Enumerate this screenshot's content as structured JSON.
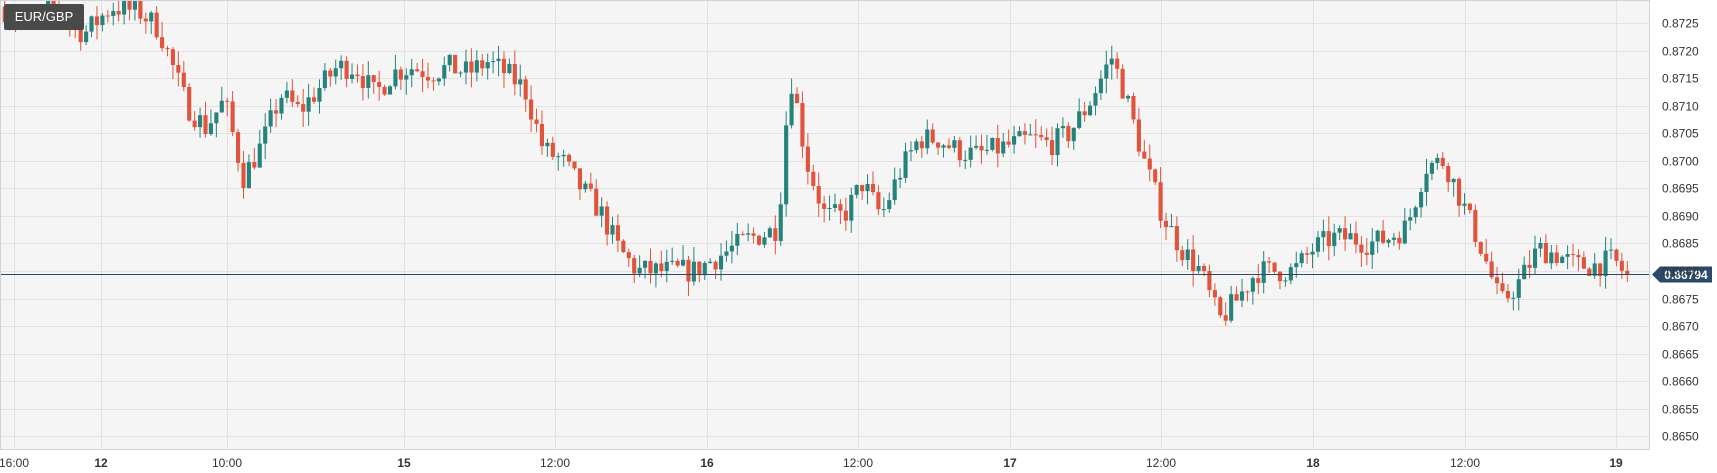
{
  "chart_data": {
    "type": "candlestick",
    "title": "EUR/GBP",
    "y_axis": {
      "ticks": [
        "0.8725",
        "0.8720",
        "0.8715",
        "0.8710",
        "0.8705",
        "0.8700",
        "0.8695",
        "0.8690",
        "0.8685",
        "0.8680",
        "0.8675",
        "0.8670",
        "0.8665",
        "0.8660",
        "0.8655",
        "0.8650"
      ],
      "min": 0.86475,
      "max": 0.87292
    },
    "x_axis": {
      "ticks": [
        {
          "label": "16:00",
          "bold": false
        },
        {
          "label": "12",
          "bold": true
        },
        {
          "label": "10:00",
          "bold": false
        },
        {
          "label": "15",
          "bold": true
        },
        {
          "label": "12:00",
          "bold": false
        },
        {
          "label": "16",
          "bold": true
        },
        {
          "label": "12:00",
          "bold": false
        },
        {
          "label": "17",
          "bold": true
        },
        {
          "label": "12:00",
          "bold": false
        },
        {
          "label": "18",
          "bold": true
        },
        {
          "label": "12:00",
          "bold": false
        },
        {
          "label": "19",
          "bold": true
        }
      ]
    },
    "last_price": {
      "label": "0.86794",
      "value": 0.86794
    },
    "grid": true,
    "colors": {
      "up": "#26837c",
      "down": "#e0533c",
      "last_price_line": "#2b4a6b",
      "grid": "#e3e3e3",
      "background": "#f5f5f5"
    },
    "price_path": [
      [
        0,
        0.8728
      ],
      [
        3,
        0.8725
      ],
      [
        6,
        0.8728
      ],
      [
        9,
        0.8723
      ],
      [
        12,
        0.8728
      ],
      [
        15,
        0.8727
      ],
      [
        17,
        0.8724
      ],
      [
        20,
        0.871
      ],
      [
        22,
        0.8706
      ],
      [
        24,
        0.8711
      ],
      [
        26,
        0.8697
      ],
      [
        28,
        0.8703
      ],
      [
        30,
        0.8712
      ],
      [
        32,
        0.8709
      ],
      [
        34,
        0.8713
      ],
      [
        36,
        0.8717
      ],
      [
        38,
        0.8717
      ],
      [
        40,
        0.8712
      ],
      [
        42,
        0.8716
      ],
      [
        44,
        0.8717
      ],
      [
        46,
        0.8716
      ],
      [
        48,
        0.8717
      ],
      [
        50,
        0.8716
      ],
      [
        52,
        0.8718
      ],
      [
        54,
        0.8716
      ],
      [
        56,
        0.8713
      ],
      [
        58,
        0.8702
      ],
      [
        60,
        0.87
      ],
      [
        62,
        0.8695
      ],
      [
        64,
        0.8691
      ],
      [
        66,
        0.8684
      ],
      [
        68,
        0.868
      ],
      [
        70,
        0.868
      ],
      [
        72,
        0.868
      ],
      [
        74,
        0.868
      ],
      [
        76,
        0.8682
      ],
      [
        78,
        0.8684
      ],
      [
        80,
        0.8686
      ],
      [
        82,
        0.8687
      ],
      [
        83,
        0.8688
      ],
      [
        84,
        0.871
      ],
      [
        84.5,
        0.8715
      ],
      [
        86,
        0.87
      ],
      [
        88,
        0.869
      ],
      [
        90,
        0.869
      ],
      [
        92,
        0.8696
      ],
      [
        94,
        0.869
      ],
      [
        96,
        0.8698
      ],
      [
        98,
        0.8704
      ],
      [
        100,
        0.8704
      ],
      [
        102,
        0.8702
      ],
      [
        104,
        0.8701
      ],
      [
        106,
        0.8702
      ],
      [
        108,
        0.8703
      ],
      [
        110,
        0.8704
      ],
      [
        112,
        0.8703
      ],
      [
        114,
        0.8705
      ],
      [
        116,
        0.871
      ],
      [
        118,
        0.8717
      ],
      [
        118.5,
        0.8719
      ],
      [
        120,
        0.8712
      ],
      [
        122,
        0.87
      ],
      [
        124,
        0.869
      ],
      [
        126,
        0.8684
      ],
      [
        128,
        0.868
      ],
      [
        130,
        0.8671
      ],
      [
        132,
        0.8675
      ],
      [
        134,
        0.868
      ],
      [
        136,
        0.868
      ],
      [
        138,
        0.868
      ],
      [
        140,
        0.8684
      ],
      [
        142,
        0.8686
      ],
      [
        144,
        0.8686
      ],
      [
        146,
        0.8685
      ],
      [
        148,
        0.8686
      ],
      [
        150,
        0.8688
      ],
      [
        152,
        0.8699
      ],
      [
        154,
        0.87
      ],
      [
        156,
        0.8692
      ],
      [
        158,
        0.8684
      ],
      [
        160,
        0.8674
      ],
      [
        162,
        0.8678
      ],
      [
        164,
        0.8684
      ],
      [
        166,
        0.8683
      ],
      [
        168,
        0.8681
      ],
      [
        170,
        0.8681
      ],
      [
        172,
        0.8682
      ],
      [
        173.5,
        0.8679
      ]
    ]
  }
}
